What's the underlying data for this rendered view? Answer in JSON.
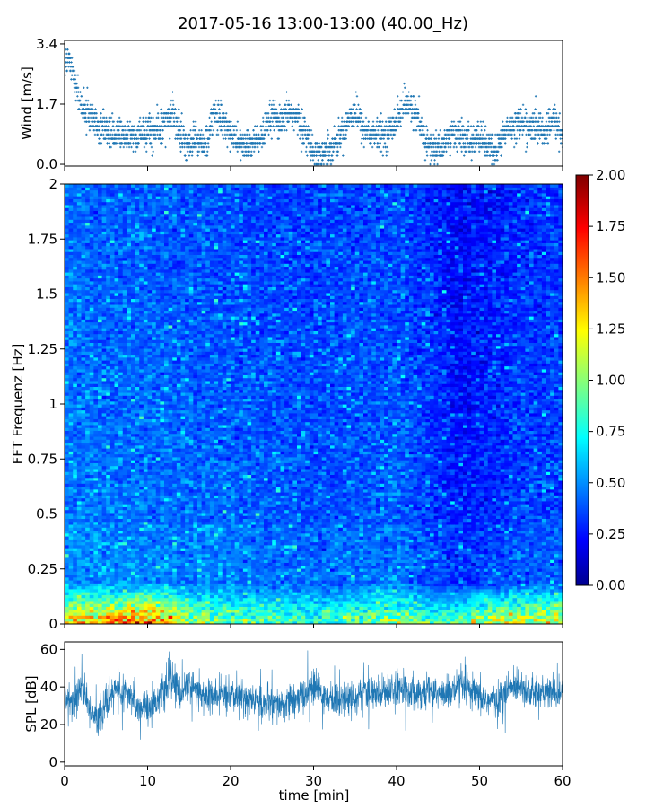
{
  "figure": {
    "title": "2017-05-16 13:00-13:00 (40.00_Hz)"
  },
  "chart_data": [
    {
      "panel": "wind",
      "type": "scatter",
      "ylabel": "Wind [m/s]",
      "xlim": [
        0,
        60
      ],
      "ylim": [
        -0.05,
        3.5
      ],
      "yticks": [
        0.0,
        1.7,
        3.4
      ],
      "ytick_labels": [
        "0.0",
        "1.7",
        "3.4"
      ],
      "marker_color": "#1f77b4",
      "x_knots": [
        0,
        0.5,
        1,
        1.5,
        2,
        3,
        4,
        5,
        6,
        7,
        8,
        9,
        10,
        11,
        12,
        13,
        14,
        15,
        16,
        17,
        18,
        19,
        20,
        21,
        22,
        23,
        24,
        25,
        26,
        27,
        28,
        29,
        30,
        31,
        32,
        33,
        34,
        35,
        36,
        37,
        38,
        39,
        40,
        41,
        42,
        43,
        44,
        45,
        46,
        47,
        48,
        49,
        50,
        51,
        52,
        53,
        54,
        55,
        56,
        57,
        58,
        59,
        60
      ],
      "y_knots": [
        2.8,
        3.0,
        2.6,
        2.1,
        1.7,
        1.4,
        1.1,
        1.0,
        0.9,
        0.85,
        0.8,
        0.85,
        0.9,
        1.0,
        1.2,
        1.4,
        0.8,
        0.6,
        0.7,
        0.55,
        1.5,
        1.2,
        0.9,
        0.6,
        0.5,
        0.65,
        0.8,
        1.4,
        1.1,
        1.5,
        1.3,
        0.9,
        0.35,
        0.3,
        0.45,
        0.7,
        1.2,
        1.5,
        1.0,
        0.85,
        0.8,
        0.9,
        1.3,
        1.7,
        1.6,
        0.9,
        0.5,
        0.4,
        0.7,
        0.9,
        0.75,
        0.6,
        0.8,
        0.5,
        0.35,
        0.9,
        1.1,
        1.2,
        1.0,
        1.1,
        0.9,
        1.3,
        0.8
      ]
    },
    {
      "panel": "spectrogram",
      "type": "heatmap",
      "ylabel": "FFT Frequenz [Hz]",
      "xlim": [
        0,
        60
      ],
      "ylim": [
        0,
        2
      ],
      "yticks": [
        0,
        0.25,
        0.5,
        0.75,
        1,
        1.25,
        1.5,
        1.75,
        2
      ],
      "ytick_labels": [
        "0",
        "0.25",
        "0.5",
        "0.75",
        "1",
        "1.25",
        "1.5",
        "1.75",
        "2"
      ],
      "colormap": "jet",
      "vmin": 0.0,
      "vmax": 2.0,
      "colorbar_ticks": [
        "0.00",
        "0.25",
        "0.50",
        "0.75",
        "1.00",
        "1.25",
        "1.50",
        "1.75",
        "2.00"
      ],
      "column_mean_minutes": [
        0,
        5,
        10,
        15,
        20,
        25,
        30,
        35,
        40,
        45,
        47,
        50,
        55,
        60
      ],
      "column_mean_intensity": [
        0.32,
        0.3,
        0.3,
        0.28,
        0.27,
        0.25,
        0.24,
        0.25,
        0.26,
        0.18,
        0.12,
        0.14,
        0.2,
        0.22
      ],
      "low_frequency_band_hz": [
        0,
        0.2
      ],
      "low_frequency_band_intensity": [
        1.4,
        1.6,
        1.8,
        1.2,
        1.0,
        1.0,
        0.9,
        1.0,
        1.2,
        0.9,
        1.0,
        1.2,
        1.3,
        1.4
      ]
    },
    {
      "panel": "spl",
      "type": "line",
      "xlabel": "time [min]",
      "ylabel": "SPL [dB]",
      "xlim": [
        0,
        60
      ],
      "ylim": [
        -2,
        64
      ],
      "xticks": [
        0,
        10,
        20,
        30,
        40,
        50,
        60
      ],
      "xtick_labels": [
        "0",
        "10",
        "20",
        "30",
        "40",
        "50",
        "60"
      ],
      "yticks": [
        0,
        20,
        40,
        60
      ],
      "ytick_labels": [
        "0",
        "20",
        "40",
        "60"
      ],
      "line_color": "#1f77b4",
      "x_knots": [
        0,
        1,
        2,
        3,
        4,
        5,
        6,
        7,
        8,
        9,
        10,
        11,
        12,
        13,
        14,
        15,
        16,
        17,
        18,
        19,
        20,
        22,
        24,
        26,
        28,
        30,
        32,
        34,
        36,
        38,
        40,
        42,
        44,
        46,
        48,
        50,
        52,
        54,
        55,
        56,
        58,
        60
      ],
      "y_knots": [
        34,
        32,
        40,
        28,
        22,
        30,
        40,
        36,
        34,
        30,
        28,
        33,
        38,
        44,
        36,
        42,
        38,
        35,
        34,
        36,
        35,
        34,
        31,
        30,
        33,
        40,
        33,
        34,
        36,
        37,
        39,
        38,
        37,
        36,
        40,
        34,
        32,
        40,
        42,
        36,
        37,
        36
      ]
    }
  ]
}
